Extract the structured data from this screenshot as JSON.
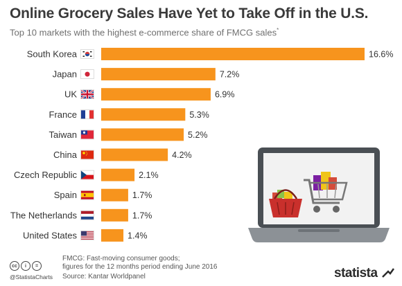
{
  "title": "Online Grocery Sales Have Yet to Take Off in the U.S.",
  "subtitle": "Top 10 markets with the highest e-commerce share of FMCG sales",
  "subtitle_marker": "*",
  "colors": {
    "bar": "#F7941D",
    "label": "#333333",
    "gridline": "#e6e6e6"
  },
  "chart_data": {
    "type": "bar",
    "orientation": "horizontal",
    "categories": [
      "South Korea",
      "Japan",
      "UK",
      "France",
      "Taiwan",
      "China",
      "Czech Republic",
      "Spain",
      "The Netherlands",
      "United States"
    ],
    "values": [
      16.6,
      7.2,
      6.9,
      5.3,
      5.2,
      4.2,
      2.1,
      1.7,
      1.7,
      1.4
    ],
    "value_labels": [
      "16.6%",
      "7.2%",
      "6.9%",
      "5.3%",
      "5.2%",
      "4.2%",
      "2.1%",
      "1.7%",
      "1.7%",
      "1.4%"
    ],
    "flag_icons": [
      "flag-south-korea",
      "flag-japan",
      "flag-uk",
      "flag-france",
      "flag-taiwan",
      "flag-china",
      "flag-czech-republic",
      "flag-spain",
      "flag-netherlands",
      "flag-united-states"
    ],
    "unit": "%",
    "xlim": [
      0,
      16.6
    ],
    "grid": false
  },
  "illustration": {
    "icon": "laptop-shopping-cart-basket-icon"
  },
  "footer": {
    "note_line1": "FMCG: Fast-moving consumer goods;",
    "note_line2": "figures for the 12 months period ending June 2016",
    "source": "Source: Kantar Worldpanel",
    "handle": "@StatistaCharts",
    "license_icons": [
      "cc",
      "i",
      "="
    ],
    "logo": "statista"
  }
}
